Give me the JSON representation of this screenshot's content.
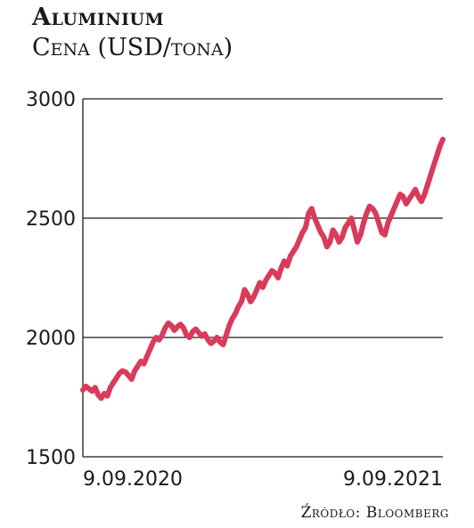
{
  "chart_data": {
    "type": "line",
    "title": "Aluminium",
    "subtitle": "Cena (USD/tona)",
    "source": "Źródło: Bloomberg",
    "ylim": [
      1500,
      3000
    ],
    "yticks": [
      1500,
      2000,
      2500,
      3000
    ],
    "xlim": [
      "2020-09-09",
      "2021-09-09"
    ],
    "xtick_labels": [
      "9.09.2020",
      "9.09.2021"
    ],
    "grid": true,
    "color": "#d93b5a",
    "series": [
      {
        "values": [
          1780,
          1795,
          1785,
          1775,
          1790,
          1760,
          1745,
          1765,
          1755,
          1790,
          1810,
          1830,
          1850,
          1860,
          1855,
          1840,
          1825,
          1860,
          1880,
          1900,
          1890,
          1920,
          1950,
          1980,
          2000,
          1990,
          2010,
          2040,
          2060,
          2050,
          2030,
          2045,
          2055,
          2040,
          2010,
          2000,
          2025,
          2035,
          2020,
          2005,
          2015,
          1990,
          1975,
          1985,
          2000,
          1980,
          1970,
          2010,
          2050,
          2080,
          2100,
          2130,
          2150,
          2200,
          2180,
          2150,
          2170,
          2200,
          2230,
          2210,
          2240,
          2260,
          2280,
          2270,
          2250,
          2290,
          2320,
          2300,
          2340,
          2360,
          2380,
          2410,
          2440,
          2460,
          2520,
          2540,
          2500,
          2470,
          2440,
          2420,
          2380,
          2400,
          2450,
          2430,
          2400,
          2420,
          2460,
          2480,
          2500,
          2450,
          2400,
          2430,
          2480,
          2520,
          2550,
          2540,
          2520,
          2480,
          2440,
          2430,
          2480,
          2510,
          2540,
          2570,
          2600,
          2590,
          2560,
          2580,
          2600,
          2620,
          2590,
          2570,
          2600,
          2640,
          2680,
          2720,
          2760,
          2800,
          2830
        ]
      }
    ]
  }
}
